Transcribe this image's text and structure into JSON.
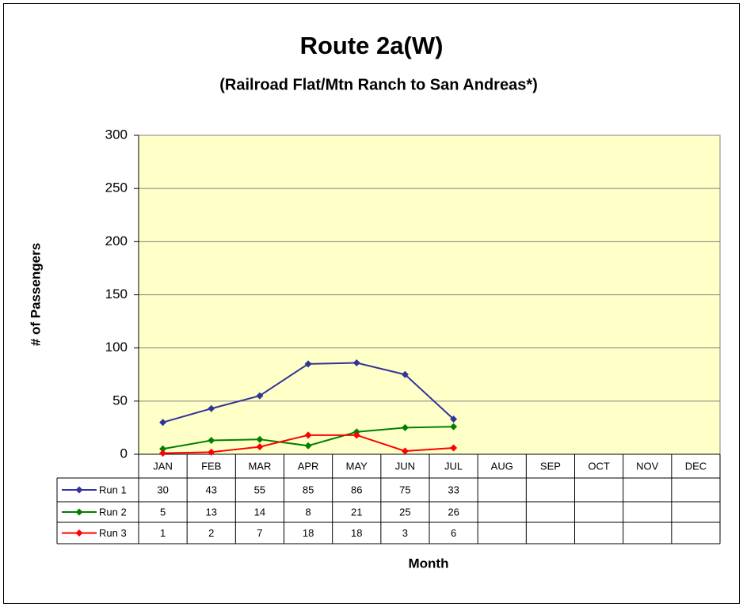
{
  "chart_data": {
    "type": "line",
    "title": "Route 2a(W)",
    "subtitle": "(Railroad Flat/Mtn Ranch to San Andreas*)",
    "y_label": "# of Passengers",
    "x_label": "Month",
    "categories": [
      "JAN",
      "FEB",
      "MAR",
      "APR",
      "MAY",
      "JUN",
      "JUL",
      "AUG",
      "SEP",
      "OCT",
      "NOV",
      "DEC"
    ],
    "series": [
      {
        "name": "Run 1",
        "color": "#333399",
        "values": [
          30,
          43,
          55,
          85,
          86,
          75,
          33,
          null,
          null,
          null,
          null,
          null
        ]
      },
      {
        "name": "Run 2",
        "color": "#008000",
        "values": [
          5,
          13,
          14,
          8,
          21,
          25,
          26,
          null,
          null,
          null,
          null,
          null
        ]
      },
      {
        "name": "Run 3",
        "color": "#ff0000",
        "values": [
          1,
          2,
          7,
          18,
          18,
          3,
          6,
          null,
          null,
          null,
          null,
          null
        ]
      }
    ],
    "ylim": [
      0,
      300
    ],
    "yticks": [
      0,
      50,
      100,
      150,
      200,
      250,
      300
    ],
    "grid": true,
    "plot_background": "#ffffc8"
  }
}
